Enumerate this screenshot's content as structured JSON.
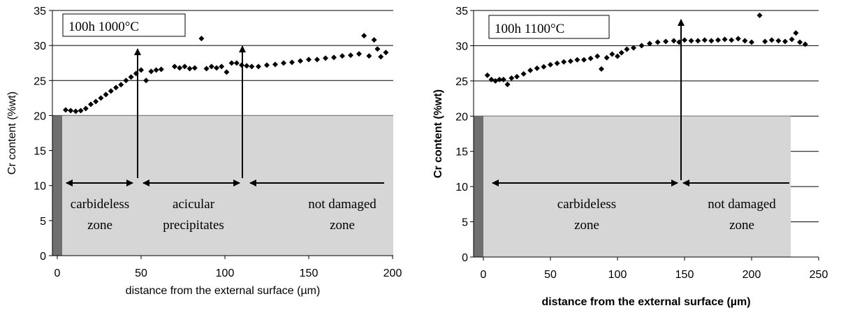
{
  "chart_data": [
    {
      "type": "scatter",
      "color": "#000000",
      "grid": true,
      "bold_axis_titles": false,
      "x_label": "distance from the external surface (µm)",
      "y_label": "Cr content (%wt)",
      "xlim": [
        0,
        200
      ],
      "xticks": [
        0,
        50,
        100,
        150,
        200
      ],
      "ylim": [
        0,
        35
      ],
      "yticks": [
        0,
        5,
        10,
        15,
        20,
        25,
        30,
        35
      ],
      "annotations": [
        "100h 1000°C"
      ],
      "zone_labels": [
        [
          "carbideless",
          "zone"
        ],
        [
          "acicular",
          "precipitates"
        ],
        [
          "not damaged",
          "zone"
        ]
      ],
      "x": [
        5,
        8,
        11,
        14,
        17,
        20,
        23,
        26,
        29,
        32,
        35,
        38,
        41,
        44,
        47,
        50,
        53,
        56,
        59,
        62,
        70,
        73,
        76,
        79,
        82,
        86,
        89,
        92,
        95,
        98,
        101,
        104,
        107,
        110,
        113,
        116,
        120,
        125,
        130,
        135,
        140,
        145,
        150,
        155,
        160,
        165,
        170,
        175,
        180,
        183,
        186,
        189,
        191,
        193,
        196
      ],
      "values": [
        20.8,
        20.7,
        20.6,
        20.7,
        21.0,
        21.6,
        22.0,
        22.5,
        23.0,
        23.5,
        24.0,
        24.4,
        25.0,
        25.5,
        26.0,
        26.5,
        25.0,
        26.3,
        26.5,
        26.6,
        27.0,
        26.8,
        27.0,
        26.7,
        26.8,
        31.0,
        26.7,
        27.0,
        26.8,
        27.0,
        26.2,
        27.5,
        27.5,
        27.2,
        27.1,
        27.0,
        27.0,
        27.2,
        27.3,
        27.5,
        27.6,
        27.8,
        28.0,
        28.0,
        28.2,
        28.3,
        28.5,
        28.6,
        28.8,
        31.4,
        28.5,
        30.8,
        29.5,
        28.4,
        29.0
      ]
    },
    {
      "type": "scatter",
      "color": "#000000",
      "grid": true,
      "bold_axis_titles": true,
      "x_label": "distance from the external surface (µm)",
      "y_label": "Cr content (%wt)",
      "xlim": [
        0,
        250
      ],
      "xticks": [
        0,
        50,
        100,
        150,
        200,
        250
      ],
      "ylim": [
        0,
        35
      ],
      "yticks": [
        0,
        5,
        10,
        15,
        20,
        25,
        30,
        35
      ],
      "annotations": [
        "100h 1100°C"
      ],
      "zone_labels": [
        [
          "carbideless",
          "zone"
        ],
        [
          "not damaged",
          "zone"
        ]
      ],
      "x": [
        3,
        6,
        9,
        12,
        15,
        18,
        21,
        25,
        30,
        35,
        40,
        45,
        50,
        55,
        60,
        65,
        70,
        75,
        80,
        85,
        88,
        92,
        96,
        100,
        103,
        107,
        112,
        118,
        124,
        130,
        136,
        142,
        146,
        150,
        155,
        160,
        165,
        170,
        175,
        180,
        185,
        190,
        195,
        200,
        206,
        210,
        215,
        220,
        225,
        230,
        233,
        236,
        240
      ],
      "values": [
        25.8,
        25.2,
        25.0,
        25.2,
        25.2,
        24.5,
        25.4,
        25.6,
        26.0,
        26.5,
        26.8,
        27.0,
        27.3,
        27.5,
        27.7,
        27.8,
        28.0,
        28.0,
        28.2,
        28.5,
        26.7,
        28.3,
        28.8,
        28.5,
        29.0,
        29.5,
        29.7,
        30.0,
        30.3,
        30.5,
        30.6,
        30.7,
        30.5,
        30.8,
        30.7,
        30.7,
        30.8,
        30.7,
        30.8,
        30.9,
        30.8,
        31.0,
        30.7,
        30.5,
        34.3,
        30.6,
        30.8,
        30.7,
        30.6,
        30.9,
        31.8,
        30.5,
        30.2
      ]
    }
  ]
}
